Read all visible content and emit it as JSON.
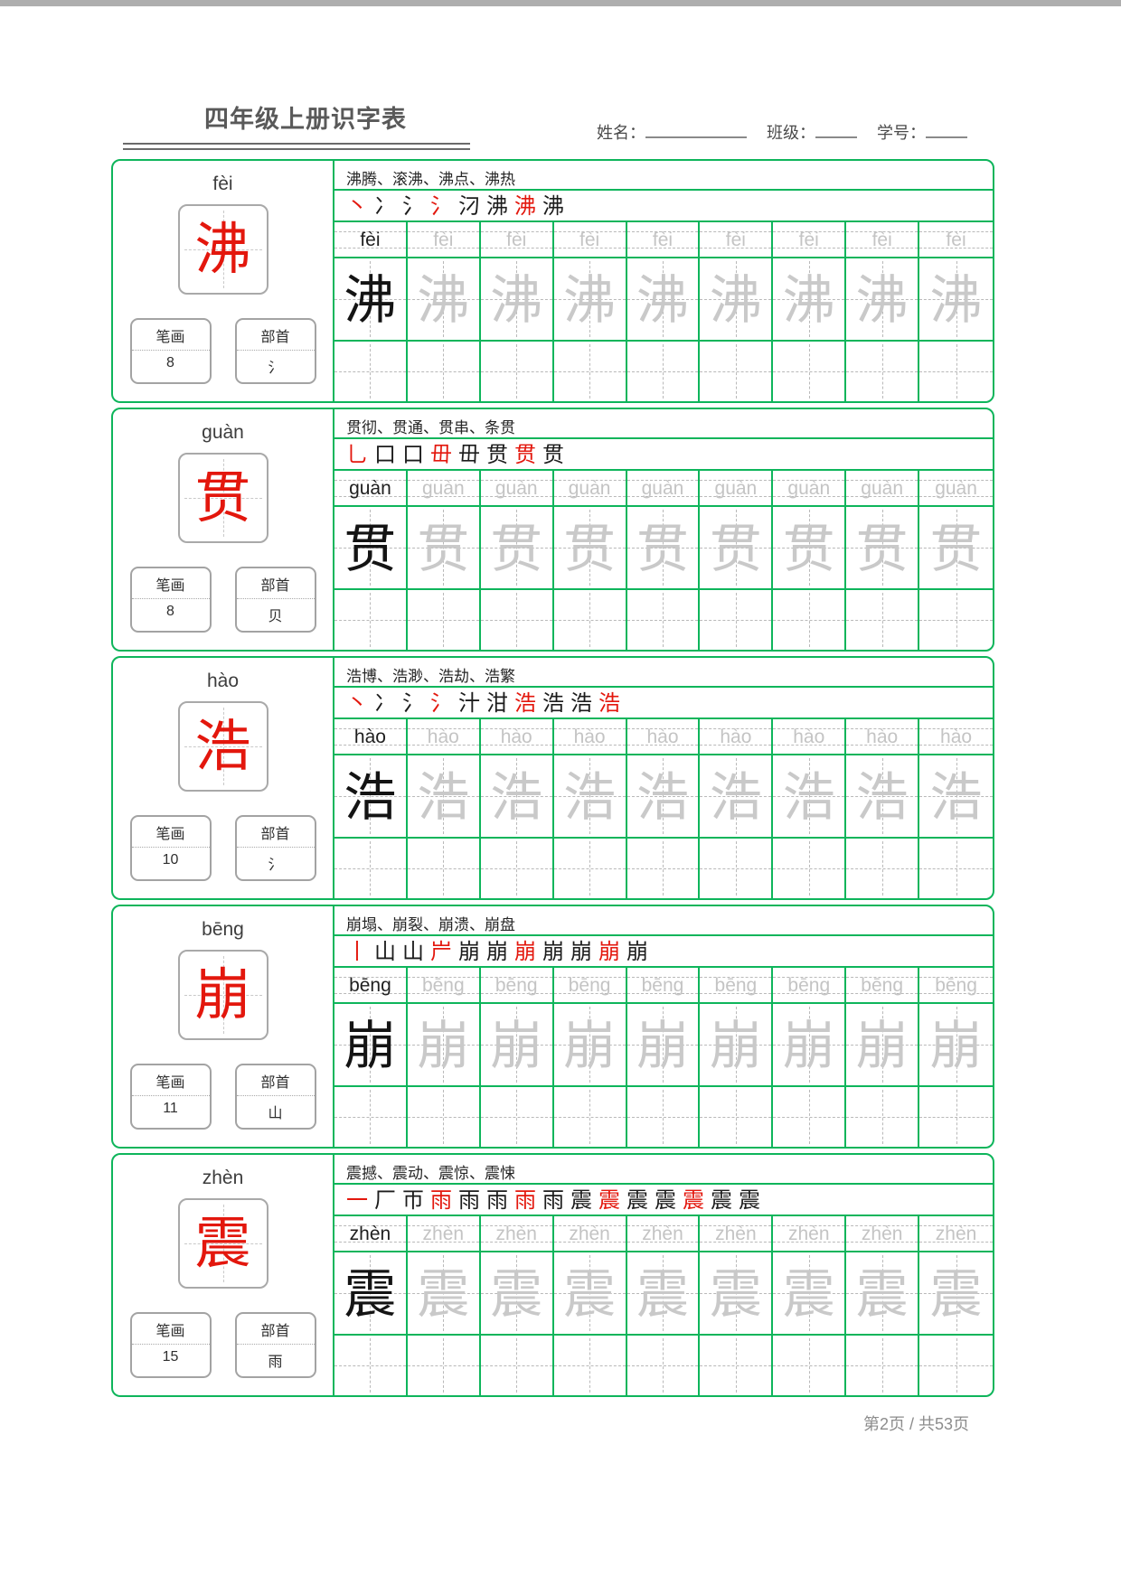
{
  "header": {
    "title": "四年级上册识字表",
    "name_label": "姓名：",
    "class_label": "班级：",
    "id_label": "学号："
  },
  "labels": {
    "strokes": "笔画",
    "radical": "部首"
  },
  "colors": {
    "green": "#0eb55b",
    "red": "#e3170d",
    "trace_gray": "#c9c9c9"
  },
  "footer": {
    "page_text": "第2页 / 共53页"
  },
  "practice": {
    "columns": 9
  },
  "blocks": [
    {
      "pinyin": "fèi",
      "char": "沸",
      "words": "沸腾、滚沸、沸点、沸热",
      "stroke_count": "8",
      "radical": "氵",
      "stroke_stages": [
        "丶",
        "冫",
        "氵",
        "氵",
        "汈",
        "沸",
        "沸",
        "沸"
      ]
    },
    {
      "pinyin": "guàn",
      "char": "贯",
      "words": "贯彻、贯通、贯串、条贯",
      "stroke_count": "8",
      "radical": "贝",
      "stroke_stages": [
        "乚",
        "口",
        "口",
        "毌",
        "毌",
        "贯",
        "贯",
        "贯"
      ]
    },
    {
      "pinyin": "hào",
      "char": "浩",
      "words": "浩博、浩渺、浩劫、浩繁",
      "stroke_count": "10",
      "radical": "氵",
      "stroke_stages": [
        "丶",
        "冫",
        "氵",
        "氵",
        "汁",
        "泔",
        "浩",
        "浩",
        "浩",
        "浩"
      ]
    },
    {
      "pinyin": "bēng",
      "char": "崩",
      "words": "崩塌、崩裂、崩溃、崩盘",
      "stroke_count": "11",
      "radical": "山",
      "stroke_stages": [
        "丨",
        "山",
        "山",
        "屵",
        "崩",
        "崩",
        "崩",
        "崩",
        "崩",
        "崩",
        "崩"
      ]
    },
    {
      "pinyin": "zhèn",
      "char": "震",
      "words": "震撼、震动、震惊、震悚",
      "stroke_count": "15",
      "radical": "雨",
      "stroke_stages": [
        "一",
        "厂",
        "帀",
        "雨",
        "雨",
        "雨",
        "雨",
        "雨",
        "震",
        "震",
        "震",
        "震",
        "震",
        "震",
        "震"
      ]
    }
  ]
}
